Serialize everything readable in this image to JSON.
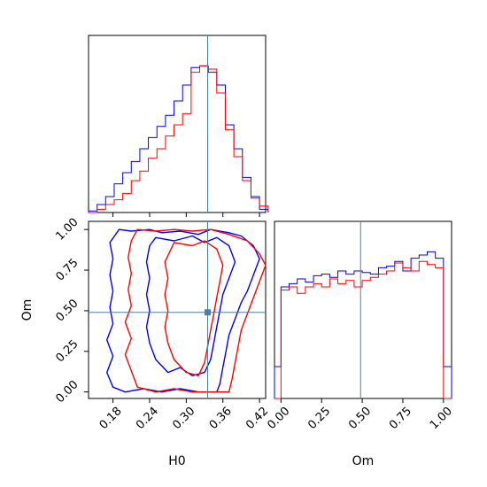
{
  "chart_data": [
    {
      "type": "histogram",
      "panel": "H0 marginal",
      "x_range": [
        0.14,
        0.43
      ],
      "truth": 0.335,
      "bins": [
        0.14,
        0.154,
        0.168,
        0.182,
        0.196,
        0.21,
        0.224,
        0.238,
        0.252,
        0.266,
        0.28,
        0.294,
        0.308,
        0.322,
        0.336,
        0.35,
        0.364,
        0.378,
        0.392,
        0.406,
        0.42,
        0.434
      ],
      "series": [
        {
          "color": "#0000ff",
          "values": [
            0.01,
            0.05,
            0.1,
            0.18,
            0.25,
            0.32,
            0.4,
            0.47,
            0.54,
            0.61,
            0.7,
            0.8,
            0.91,
            0.92,
            0.88,
            0.8,
            0.55,
            0.4,
            0.22,
            0.1,
            0.02
          ]
        },
        {
          "color": "#ff0000",
          "values": [
            0.0,
            0.02,
            0.05,
            0.08,
            0.12,
            0.2,
            0.26,
            0.34,
            0.4,
            0.48,
            0.55,
            0.62,
            0.88,
            0.92,
            0.9,
            0.75,
            0.52,
            0.35,
            0.2,
            0.09,
            0.04
          ]
        }
      ],
      "xticks": [
        "0.18",
        "0.24",
        "0.30",
        "0.36",
        "0.42"
      ],
      "xtick_values": [
        0.18,
        0.24,
        0.3,
        0.36,
        0.42
      ]
    },
    {
      "type": "contour",
      "panel": "H0 vs Om",
      "x_range": [
        0.14,
        0.43
      ],
      "y_range": [
        -0.04,
        1.05
      ],
      "truth": [
        0.335,
        0.49
      ],
      "series": [
        {
          "color": "#0000ff",
          "contours": [
            [
              [
                0.19,
                1.0
              ],
              [
                0.21,
                0.99
              ],
              [
                0.24,
                1.0
              ],
              [
                0.26,
                0.98
              ],
              [
                0.29,
                0.99
              ],
              [
                0.32,
                0.97
              ],
              [
                0.34,
                1.0
              ],
              [
                0.37,
                0.98
              ],
              [
                0.39,
                0.96
              ],
              [
                0.41,
                0.9
              ],
              [
                0.42,
                0.82
              ],
              [
                0.41,
                0.72
              ],
              [
                0.4,
                0.62
              ],
              [
                0.39,
                0.55
              ],
              [
                0.38,
                0.45
              ],
              [
                0.37,
                0.35
              ],
              [
                0.365,
                0.25
              ],
              [
                0.36,
                0.15
              ],
              [
                0.355,
                0.05
              ],
              [
                0.35,
                0.0
              ],
              [
                0.32,
                0.0
              ],
              [
                0.29,
                0.02
              ],
              [
                0.26,
                0.0
              ],
              [
                0.23,
                0.02
              ],
              [
                0.2,
                0.0
              ],
              [
                0.18,
                0.03
              ],
              [
                0.17,
                0.12
              ],
              [
                0.18,
                0.22
              ],
              [
                0.17,
                0.32
              ],
              [
                0.18,
                0.42
              ],
              [
                0.175,
                0.52
              ],
              [
                0.18,
                0.62
              ],
              [
                0.175,
                0.72
              ],
              [
                0.18,
                0.82
              ],
              [
                0.175,
                0.92
              ],
              [
                0.19,
                1.0
              ]
            ],
            [
              [
                0.25,
                0.95
              ],
              [
                0.28,
                0.93
              ],
              [
                0.31,
                0.96
              ],
              [
                0.33,
                0.92
              ],
              [
                0.35,
                0.95
              ],
              [
                0.37,
                0.9
              ],
              [
                0.38,
                0.8
              ],
              [
                0.37,
                0.7
              ],
              [
                0.36,
                0.6
              ],
              [
                0.355,
                0.5
              ],
              [
                0.35,
                0.4
              ],
              [
                0.345,
                0.3
              ],
              [
                0.34,
                0.2
              ],
              [
                0.33,
                0.12
              ],
              [
                0.31,
                0.1
              ],
              [
                0.29,
                0.15
              ],
              [
                0.27,
                0.12
              ],
              [
                0.25,
                0.2
              ],
              [
                0.24,
                0.3
              ],
              [
                0.235,
                0.4
              ],
              [
                0.24,
                0.5
              ],
              [
                0.235,
                0.6
              ],
              [
                0.24,
                0.7
              ],
              [
                0.235,
                0.8
              ],
              [
                0.24,
                0.9
              ],
              [
                0.25,
                0.95
              ]
            ]
          ]
        },
        {
          "color": "#ff0000",
          "contours": [
            [
              [
                0.22,
                1.0
              ],
              [
                0.25,
                0.99
              ],
              [
                0.28,
                1.0
              ],
              [
                0.31,
                0.99
              ],
              [
                0.34,
                1.0
              ],
              [
                0.37,
                0.97
              ],
              [
                0.4,
                0.93
              ],
              [
                0.42,
                0.85
              ],
              [
                0.43,
                0.78
              ],
              [
                0.42,
                0.68
              ],
              [
                0.41,
                0.58
              ],
              [
                0.4,
                0.48
              ],
              [
                0.39,
                0.38
              ],
              [
                0.385,
                0.28
              ],
              [
                0.38,
                0.18
              ],
              [
                0.375,
                0.08
              ],
              [
                0.37,
                0.0
              ],
              [
                0.34,
                0.0
              ],
              [
                0.31,
                0.0
              ],
              [
                0.28,
                0.02
              ],
              [
                0.25,
                0.0
              ],
              [
                0.22,
                0.03
              ],
              [
                0.21,
                0.13
              ],
              [
                0.2,
                0.23
              ],
              [
                0.21,
                0.33
              ],
              [
                0.2,
                0.43
              ],
              [
                0.21,
                0.53
              ],
              [
                0.205,
                0.63
              ],
              [
                0.21,
                0.73
              ],
              [
                0.205,
                0.83
              ],
              [
                0.21,
                0.93
              ],
              [
                0.22,
                1.0
              ]
            ],
            [
              [
                0.28,
                0.92
              ],
              [
                0.31,
                0.9
              ],
              [
                0.33,
                0.93
              ],
              [
                0.35,
                0.88
              ],
              [
                0.36,
                0.78
              ],
              [
                0.355,
                0.68
              ],
              [
                0.35,
                0.58
              ],
              [
                0.345,
                0.48
              ],
              [
                0.34,
                0.38
              ],
              [
                0.335,
                0.28
              ],
              [
                0.33,
                0.18
              ],
              [
                0.32,
                0.1
              ],
              [
                0.3,
                0.12
              ],
              [
                0.28,
                0.2
              ],
              [
                0.27,
                0.3
              ],
              [
                0.265,
                0.4
              ],
              [
                0.27,
                0.5
              ],
              [
                0.265,
                0.6
              ],
              [
                0.27,
                0.7
              ],
              [
                0.265,
                0.8
              ],
              [
                0.28,
                0.92
              ]
            ]
          ]
        }
      ],
      "xticks": [
        "0.18",
        "0.24",
        "0.30",
        "0.36",
        "0.42"
      ],
      "xtick_values": [
        0.18,
        0.24,
        0.3,
        0.36,
        0.42
      ],
      "yticks": [
        "0.00",
        "0.25",
        "0.50",
        "0.75",
        "1.00"
      ],
      "ytick_values": [
        0.0,
        0.25,
        0.5,
        0.75,
        1.0
      ],
      "xlabel": "H0",
      "ylabel": "Om"
    },
    {
      "type": "histogram",
      "panel": "Om marginal",
      "x_range": [
        -0.04,
        1.05
      ],
      "truth": 0.49,
      "bins": [
        -0.04,
        0.0,
        0.05,
        0.1,
        0.15,
        0.2,
        0.25,
        0.3,
        0.35,
        0.4,
        0.45,
        0.5,
        0.55,
        0.6,
        0.65,
        0.7,
        0.75,
        0.8,
        0.85,
        0.9,
        0.95,
        1.0,
        1.05
      ],
      "series": [
        {
          "color": "#0000ff",
          "values": [
            0.2,
            0.7,
            0.72,
            0.75,
            0.73,
            0.77,
            0.78,
            0.76,
            0.8,
            0.78,
            0.8,
            0.79,
            0.78,
            0.82,
            0.83,
            0.86,
            0.8,
            0.88,
            0.9,
            0.92,
            0.88,
            0.2
          ]
        },
        {
          "color": "#ff0000",
          "values": [
            0.0,
            0.68,
            0.7,
            0.66,
            0.7,
            0.72,
            0.7,
            0.75,
            0.72,
            0.74,
            0.7,
            0.74,
            0.76,
            0.78,
            0.8,
            0.85,
            0.82,
            0.8,
            0.86,
            0.84,
            0.82,
            0.0
          ]
        }
      ],
      "xticks": [
        "0.00",
        "0.25",
        "0.50",
        "0.75",
        "1.00"
      ],
      "xtick_values": [
        0.0,
        0.25,
        0.5,
        0.75,
        1.0
      ],
      "xlabel": "Om"
    }
  ]
}
